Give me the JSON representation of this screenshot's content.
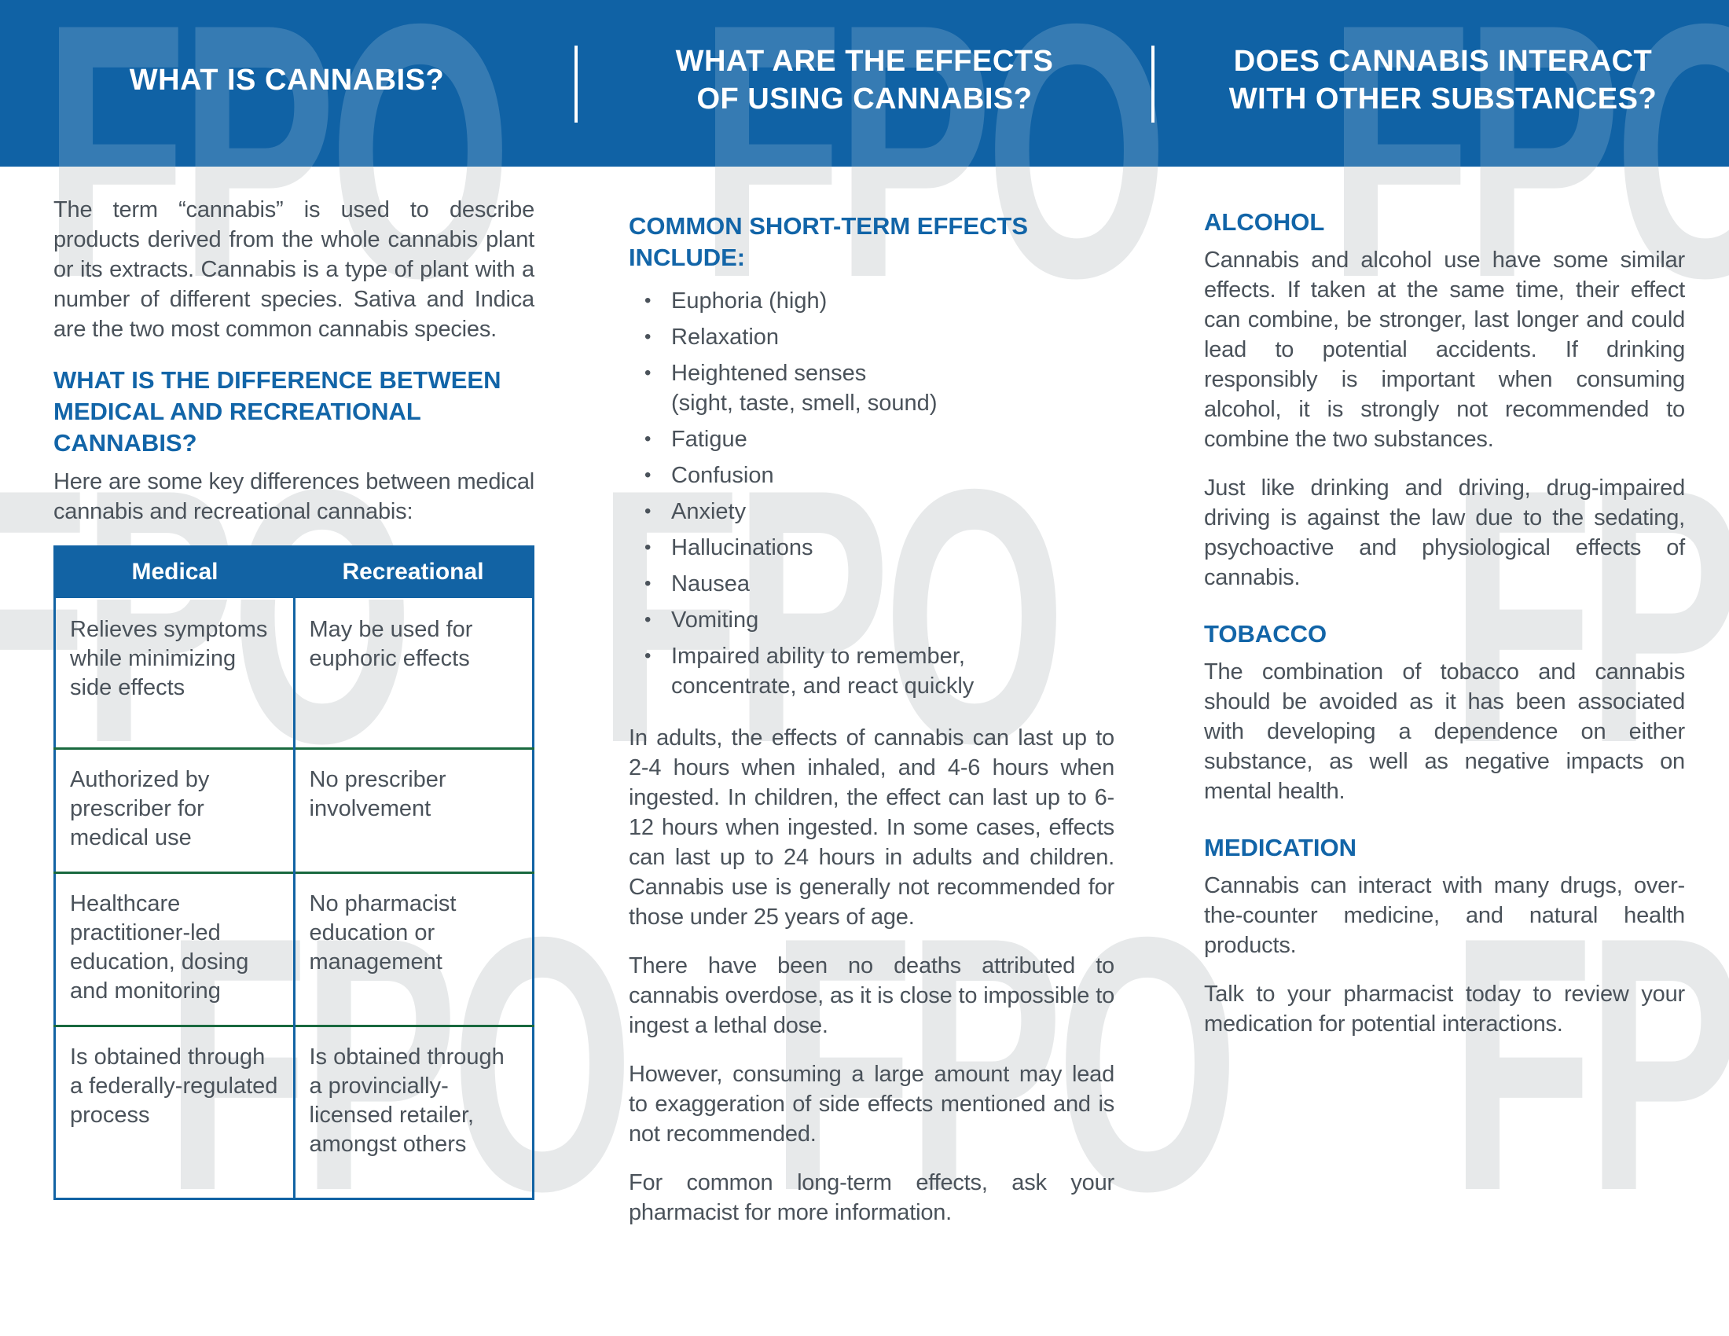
{
  "watermark": {
    "text": "FPO",
    "color_on_white": "#e7e9ea"
  },
  "colors": {
    "band_blue": "#1062a5",
    "heading_blue": "#1265a8",
    "table_border_blue": "#1263a4",
    "table_row_divider_green": "#19693f",
    "body_text": "#4a525a",
    "band_text": "#ffffff"
  },
  "header_band": {
    "columns": [
      {
        "title": "WHAT IS CANNABIS?"
      },
      {
        "title": "WHAT ARE THE EFFECTS\nOF USING CANNABIS?"
      },
      {
        "title": "DOES CANNABIS INTERACT\nWITH OTHER SUBSTANCES?"
      }
    ]
  },
  "column1": {
    "intro": "The term “cannabis” is used to describe products derived from the whole cannabis plant or its extracts. Cannabis is a type of plant with a number of different species. Sativa and Indica are the two most common cannabis species.",
    "subheading": "WHAT IS THE DIFFERENCE BETWEEN MEDICAL AND RECREATIONAL CANNABIS?",
    "table_lead": "Here are some key differences between medical cannabis and recreational cannabis:",
    "table": {
      "headers": [
        "Medical",
        "Recreational"
      ],
      "rows": [
        [
          "Relieves symptoms while minimizing side effects",
          "May be used for euphoric effects"
        ],
        [
          "Authorized by prescriber for medical use",
          "No prescriber involvement"
        ],
        [
          "Healthcare practitioner-led education, dosing and monitoring",
          "No pharmacist education or management"
        ],
        [
          "Is obtained through a federally-regulated process",
          "Is obtained through a provincially-licensed retailer, amongst others"
        ]
      ]
    }
  },
  "column2": {
    "subheading": "COMMON SHORT-TERM EFFECTS INCLUDE:",
    "bullets": [
      "Euphoria (high)",
      "Relaxation",
      "Heightened senses\n(sight, taste, smell, sound)",
      "Fatigue",
      "Confusion",
      "Anxiety",
      "Hallucinations",
      "Nausea",
      "Vomiting",
      "Impaired ability to remember,\nconcentrate, and react quickly"
    ],
    "paragraphs": [
      "In adults, the effects of cannabis can last up to 2-4 hours when inhaled, and 4-6 hours when ingested. In children, the effect can last up to 6-12 hours when ingested. In some cases, effects can last up to 24 hours in adults and children. Cannabis use is generally not recommended for those under 25 years of age.",
      "There have been no deaths attributed to cannabis overdose, as it is close to impossible to ingest a lethal dose.",
      "However, consuming a large amount may lead to exaggeration of side effects mentioned and is not recommended.",
      "For common long-term effects, ask your pharmacist for more information."
    ]
  },
  "column3": {
    "sections": [
      {
        "heading": "ALCOHOL",
        "paragraphs": [
          "Cannabis and alcohol use have some similar effects. If taken at the same time, their effect can combine, be stronger, last longer and could lead to potential accidents. If drinking responsibly is important when consuming alcohol, it is strongly not recommended to combine the two substances.",
          "Just like drinking and driving, drug-impaired driving is against the law due to the sedating, psychoactive and physiological effects of cannabis."
        ]
      },
      {
        "heading": "TOBACCO",
        "paragraphs": [
          "The combination of tobacco and cannabis should be avoided as it has been associated with developing a dependence on either substance, as well as negative impacts on mental health."
        ]
      },
      {
        "heading": "MEDICATION",
        "paragraphs": [
          "Cannabis can interact with many drugs, over-the-counter medicine, and natural health products.",
          "Talk to your pharmacist today to review your medication for potential interactions."
        ]
      }
    ]
  }
}
